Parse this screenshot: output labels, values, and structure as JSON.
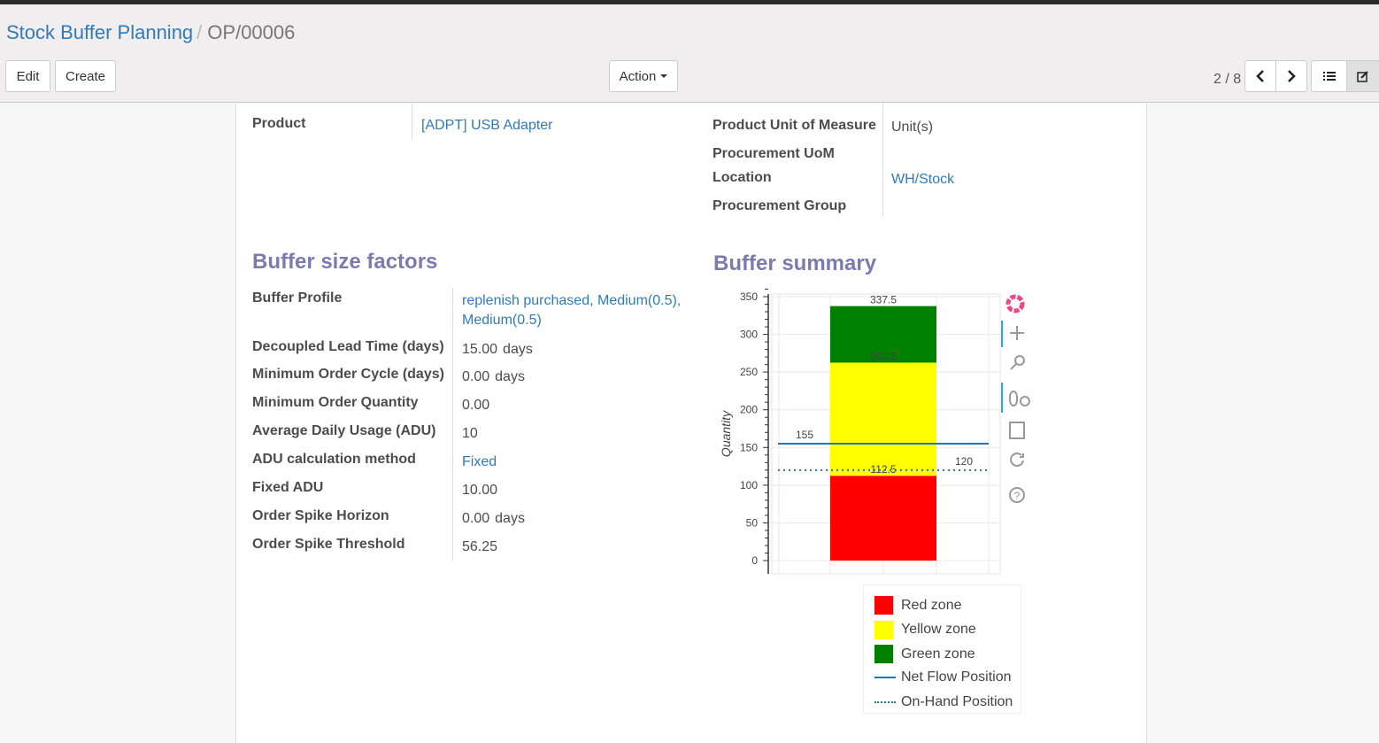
{
  "breadcrumb": {
    "parent": "Stock Buffer Planning",
    "current": "OP/00006"
  },
  "toolbar": {
    "edit": "Edit",
    "create": "Create",
    "action": "Action",
    "pager": "2 / 8"
  },
  "form": {
    "product_label": "Product",
    "product_value": "[ADPT] USB Adapter",
    "uom_label": "Product Unit of Measure",
    "uom_value": "Unit(s)",
    "proc_uom_label": "Procurement UoM",
    "location_label": "Location",
    "location_value": "WH/Stock",
    "proc_group_label": "Procurement Group"
  },
  "factors": {
    "title": "Buffer size factors",
    "rows": [
      {
        "label": "Buffer Profile",
        "value": "replenish purchased, Medium(0.5),",
        "value2": "Medium(0.5)",
        "link": true
      },
      {
        "label": "Decoupled Lead Time (days)",
        "value": "15.00",
        "unit": "days"
      },
      {
        "label": "Minimum Order Cycle (days)",
        "value": "0.00",
        "unit": "days"
      },
      {
        "label": "Minimum Order Quantity",
        "value": "0.00"
      },
      {
        "label": "Average Daily Usage (ADU)",
        "value": "10"
      },
      {
        "label": "ADU calculation method",
        "value": "Fixed",
        "link": true
      },
      {
        "label": "Fixed ADU",
        "value": "10.00"
      },
      {
        "label": "Order Spike Horizon",
        "value": "0.00",
        "unit": "days"
      },
      {
        "label": "Order Spike Threshold",
        "value": "56.25"
      }
    ]
  },
  "summary": {
    "title": "Buffer summary"
  },
  "chart_data": {
    "type": "bar",
    "ylabel": "Quantity",
    "ylim": [
      0,
      350
    ],
    "yticks": [
      0,
      50,
      100,
      150,
      200,
      250,
      300,
      350
    ],
    "grid": true,
    "stacked": true,
    "series": [
      {
        "name": "Red zone",
        "from": 0,
        "to": 112.5,
        "color": "#ff0000",
        "label": "112.5"
      },
      {
        "name": "Yellow zone",
        "from": 112.5,
        "to": 262.5,
        "color": "#ffff00",
        "label": "262.5"
      },
      {
        "name": "Green zone",
        "from": 262.5,
        "to": 337.5,
        "color": "#008000",
        "label": "337.5"
      }
    ],
    "lines": [
      {
        "name": "Net Flow Position",
        "value": 155,
        "label": "155",
        "style": "solid",
        "color": "#1f77b4"
      },
      {
        "name": "On-Hand Position",
        "value": 120,
        "label": "120",
        "style": "dotted",
        "color": "#1f77b4"
      }
    ],
    "legend_position": "bottom-right"
  }
}
